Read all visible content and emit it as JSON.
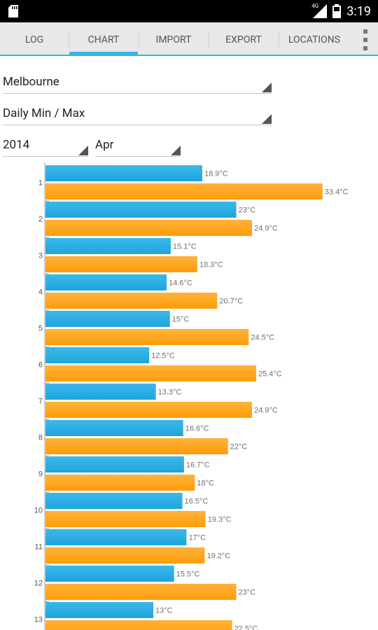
{
  "status_bar": {
    "time": "3:19",
    "network": "4G",
    "icons": [
      "sd-card-icon",
      "signal-icon",
      "battery-icon"
    ]
  },
  "tabs": [
    {
      "label": "LOG",
      "active": false
    },
    {
      "label": "CHART",
      "active": true
    },
    {
      "label": "IMPORT",
      "active": false
    },
    {
      "label": "EXPORT",
      "active": false
    },
    {
      "label": "LOCATIONS",
      "active": false
    }
  ],
  "filters": {
    "location": "Melbourne",
    "mode": "Daily Min / Max",
    "year": "2014",
    "month": "Apr"
  },
  "colors": {
    "accent": "#33b5e5",
    "min_bar": "#1ea5dc",
    "max_bar": "#ff9c0a",
    "label_text": "#707070"
  },
  "chart_data": {
    "type": "bar",
    "orientation": "horizontal",
    "categories": [
      "1",
      "2",
      "3",
      "4",
      "5",
      "6",
      "7",
      "8",
      "9",
      "10",
      "11",
      "12",
      "13"
    ],
    "unit": "°C",
    "series": [
      {
        "values": [
          18.9,
          23,
          15.1,
          14.6,
          15,
          12.5,
          13.3,
          16.6,
          16.7,
          16.5,
          17,
          15.5,
          13
        ]
      },
      {
        "values": [
          33.4,
          24.9,
          18.3,
          20.7,
          24.5,
          25.4,
          24.9,
          22,
          18,
          19.3,
          19.2,
          23,
          22.5
        ]
      }
    ],
    "value_labels": {
      "min": [
        "18.9°C",
        "23°C",
        "15.1°C",
        "14.6°C",
        "15°C",
        "12.5°C",
        "13.3°C",
        "16.6°C",
        "16.7°C",
        "16.5°C",
        "17°C",
        "15.5°C",
        "13°C"
      ],
      "max": [
        "33.4°C",
        "24.9°C",
        "18.3°C",
        "20.7°C",
        "24.5°C",
        "25.4°C",
        "24.9°C",
        "22°C",
        "18°C",
        "19.3°C",
        "19.2°C",
        "23°C",
        "22.5°C"
      ]
    },
    "legend": "none"
  }
}
